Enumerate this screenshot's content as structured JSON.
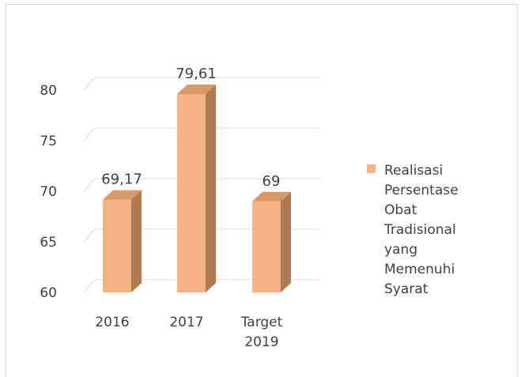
{
  "chart_data": {
    "type": "bar",
    "style": "3d-column",
    "categories": [
      [
        "2016"
      ],
      [
        "2017"
      ],
      [
        "Target",
        "2019"
      ]
    ],
    "values": [
      69.17,
      79.61,
      69
    ],
    "data_labels": [
      "69,17",
      "79,61",
      "69"
    ],
    "ylim": [
      60,
      80
    ],
    "yticks": [
      "60",
      "65",
      "70",
      "75",
      "80"
    ],
    "grid": true,
    "legend": {
      "placement": "right",
      "lines": [
        "Realisasi",
        "Persentase",
        "Obat",
        "Tradisional",
        "yang",
        "Memenuhi",
        "Syarat"
      ]
    },
    "colors": {
      "bar_front": "#f4b183",
      "bar_side": "#b07a52",
      "bar_top": "#d99966",
      "grid": "#d9d9d9",
      "text": "#404040",
      "legend_swatch": "#f4b183"
    }
  }
}
